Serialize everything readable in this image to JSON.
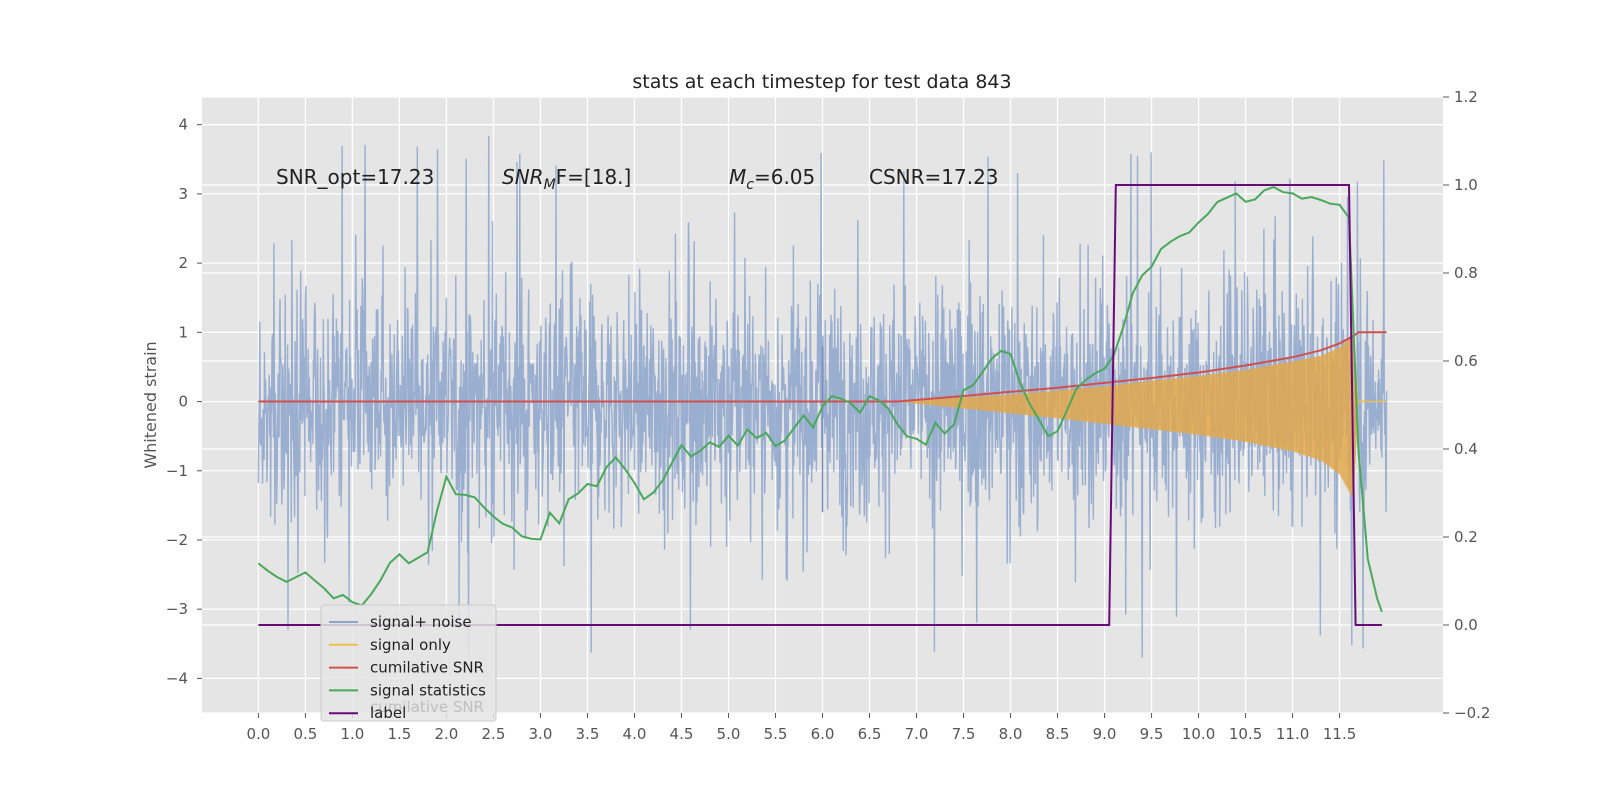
{
  "chart_data": {
    "type": "line",
    "title": "stats at each timestep for test data 843",
    "ylabel": "Whitened strain",
    "xlim": [
      -0.6,
      12.6
    ],
    "ylim": [
      -4.5,
      4.4
    ],
    "y2lim": [
      -0.2,
      1.2
    ],
    "x_ticks": [
      "0.0",
      "0.5",
      "1.0",
      "1.5",
      "2.0",
      "2.5",
      "3.0",
      "3.5",
      "4.0",
      "4.5",
      "5.0",
      "5.5",
      "6.0",
      "6.5",
      "7.0",
      "7.5",
      "8.0",
      "8.5",
      "9.0",
      "9.5",
      "10.0",
      "10.5",
      "11.0",
      "11.5"
    ],
    "y_ticks": [
      "4",
      "3",
      "2",
      "1",
      "0",
      "−1",
      "−2",
      "−3",
      "−4"
    ],
    "y2_ticks": [
      "1.2",
      "1.0",
      "0.8",
      "0.6",
      "0.4",
      "0.2",
      "0.0",
      "−0.2"
    ],
    "annotations": {
      "snr_opt": "SNR_opt=17.23",
      "snr_mf_main": "SNR",
      "snr_mf_sub": "M",
      "snr_mf_rest": "F=[18.]",
      "mc_main": "M",
      "mc_sub": "c",
      "mc_rest": "=6.05",
      "csnr": "CSNR=17.23"
    },
    "legend": {
      "placement": "lower-left",
      "items": [
        {
          "label": "signal+ noise",
          "color": "#8da4cc"
        },
        {
          "label": "signal only",
          "color": "#f0c04c"
        },
        {
          "label": "cumilative SNR",
          "color": "#d0504f"
        },
        {
          "label": "signal statistics",
          "color": "#4aa85b"
        },
        {
          "label": "label",
          "color": "#6a0a7a"
        }
      ],
      "ghost_text": "cumilative SNR"
    },
    "series": [
      {
        "name": "signal+ noise",
        "axis": "left",
        "noise_envelope": {
          "x": [
            0.0,
            12.0
          ],
          "typical_abs": 1.9,
          "peak_abs": 3.9
        }
      },
      {
        "name": "signal only",
        "axis": "left",
        "envelope": {
          "x": [
            6.8,
            7.0,
            7.5,
            8.0,
            8.5,
            9.0,
            9.5,
            10.0,
            10.5,
            11.0,
            11.3,
            11.5,
            11.6,
            11.65,
            11.7
          ],
          "upper": [
            0.0,
            0.02,
            0.06,
            0.1,
            0.16,
            0.22,
            0.3,
            0.37,
            0.46,
            0.58,
            0.66,
            0.78,
            0.9,
            0.95,
            0.0
          ],
          "lower": [
            0.0,
            -0.03,
            -0.1,
            -0.17,
            -0.24,
            -0.32,
            -0.4,
            -0.48,
            -0.58,
            -0.72,
            -0.85,
            -1.05,
            -1.3,
            -1.4,
            0.0
          ]
        }
      },
      {
        "name": "cumilative SNR",
        "axis": "left",
        "x": [
          0.0,
          6.0,
          6.8,
          7.5,
          8.0,
          8.5,
          9.0,
          9.5,
          10.0,
          10.5,
          11.0,
          11.3,
          11.5,
          11.65,
          11.7,
          12.0
        ],
        "y": [
          0.0,
          0.0,
          0.0,
          0.08,
          0.14,
          0.2,
          0.27,
          0.34,
          0.42,
          0.52,
          0.64,
          0.74,
          0.84,
          0.95,
          1.0,
          1.0
        ]
      },
      {
        "name": "signal statistics",
        "axis": "right",
        "x": [
          0.0,
          0.1,
          0.2,
          0.3,
          0.4,
          0.5,
          0.6,
          0.7,
          0.8,
          0.9,
          1.0,
          1.1,
          1.2,
          1.3,
          1.4,
          1.5,
          1.6,
          1.7,
          1.8,
          1.9,
          2.0,
          2.1,
          2.2,
          2.3,
          2.4,
          2.5,
          2.6,
          2.7,
          2.8,
          2.9,
          3.0,
          3.1,
          3.2,
          3.3,
          3.4,
          3.5,
          3.6,
          3.7,
          3.8,
          3.9,
          4.0,
          4.1,
          4.2,
          4.3,
          4.4,
          4.5,
          4.6,
          4.7,
          4.8,
          4.9,
          5.0,
          5.1,
          5.2,
          5.3,
          5.4,
          5.5,
          5.6,
          5.7,
          5.8,
          5.9,
          6.0,
          6.1,
          6.2,
          6.3,
          6.4,
          6.5,
          6.6,
          6.7,
          6.8,
          6.9,
          7.0,
          7.1,
          7.2,
          7.3,
          7.4,
          7.5,
          7.6,
          7.7,
          7.8,
          7.9,
          8.0,
          8.1,
          8.2,
          8.3,
          8.4,
          8.5,
          8.6,
          8.7,
          8.8,
          8.9,
          9.0,
          9.1,
          9.2,
          9.3,
          9.4,
          9.5,
          9.6,
          9.7,
          9.8,
          9.9,
          10.0,
          10.1,
          10.2,
          10.3,
          10.4,
          10.5,
          10.6,
          10.7,
          10.8,
          10.9,
          11.0,
          11.1,
          11.2,
          11.3,
          11.4,
          11.5,
          11.6,
          11.7,
          11.8,
          11.9,
          11.95
        ],
        "y": [
          0.14,
          0.12,
          0.11,
          0.1,
          0.11,
          0.12,
          0.1,
          0.08,
          0.06,
          0.07,
          0.05,
          0.05,
          0.07,
          0.1,
          0.14,
          0.16,
          0.14,
          0.15,
          0.17,
          0.26,
          0.34,
          0.3,
          0.3,
          0.29,
          0.27,
          0.25,
          0.23,
          0.22,
          0.2,
          0.2,
          0.2,
          0.25,
          0.23,
          0.29,
          0.3,
          0.32,
          0.31,
          0.36,
          0.38,
          0.35,
          0.32,
          0.28,
          0.3,
          0.33,
          0.37,
          0.41,
          0.38,
          0.39,
          0.41,
          0.4,
          0.43,
          0.41,
          0.45,
          0.42,
          0.44,
          0.41,
          0.42,
          0.45,
          0.48,
          0.45,
          0.5,
          0.52,
          0.52,
          0.5,
          0.48,
          0.52,
          0.51,
          0.49,
          0.46,
          0.43,
          0.42,
          0.41,
          0.46,
          0.43,
          0.46,
          0.53,
          0.55,
          0.57,
          0.6,
          0.62,
          0.62,
          0.55,
          0.5,
          0.47,
          0.43,
          0.44,
          0.49,
          0.54,
          0.56,
          0.57,
          0.58,
          0.61,
          0.68,
          0.76,
          0.79,
          0.82,
          0.86,
          0.87,
          0.88,
          0.89,
          0.91,
          0.93,
          0.96,
          0.97,
          0.98,
          0.96,
          0.97,
          0.99,
          0.99,
          0.98,
          0.98,
          0.97,
          0.97,
          0.97,
          0.96,
          0.95,
          0.92,
          0.4,
          0.15,
          0.06,
          0.03
        ],
        "jitter": true
      },
      {
        "name": "label",
        "axis": "right",
        "x": [
          0.0,
          9.05,
          9.12,
          11.6,
          11.67,
          11.95
        ],
        "y": [
          0.0,
          0.0,
          1.0,
          1.0,
          0.0,
          0.0
        ]
      }
    ],
    "vertical_segments": [
      {
        "x": 6.0,
        "y_from": -1.6,
        "y_to": 0.8
      }
    ]
  },
  "colors": {
    "axes_bg": "#e5e5e5",
    "grid": "#ffffff",
    "noise": "#8da4cc",
    "signal": "#e2a84c",
    "snr": "#d0504f",
    "stats": "#4aa85b",
    "label": "#6a0a7a",
    "text": "#222222",
    "tick": "#555555"
  }
}
